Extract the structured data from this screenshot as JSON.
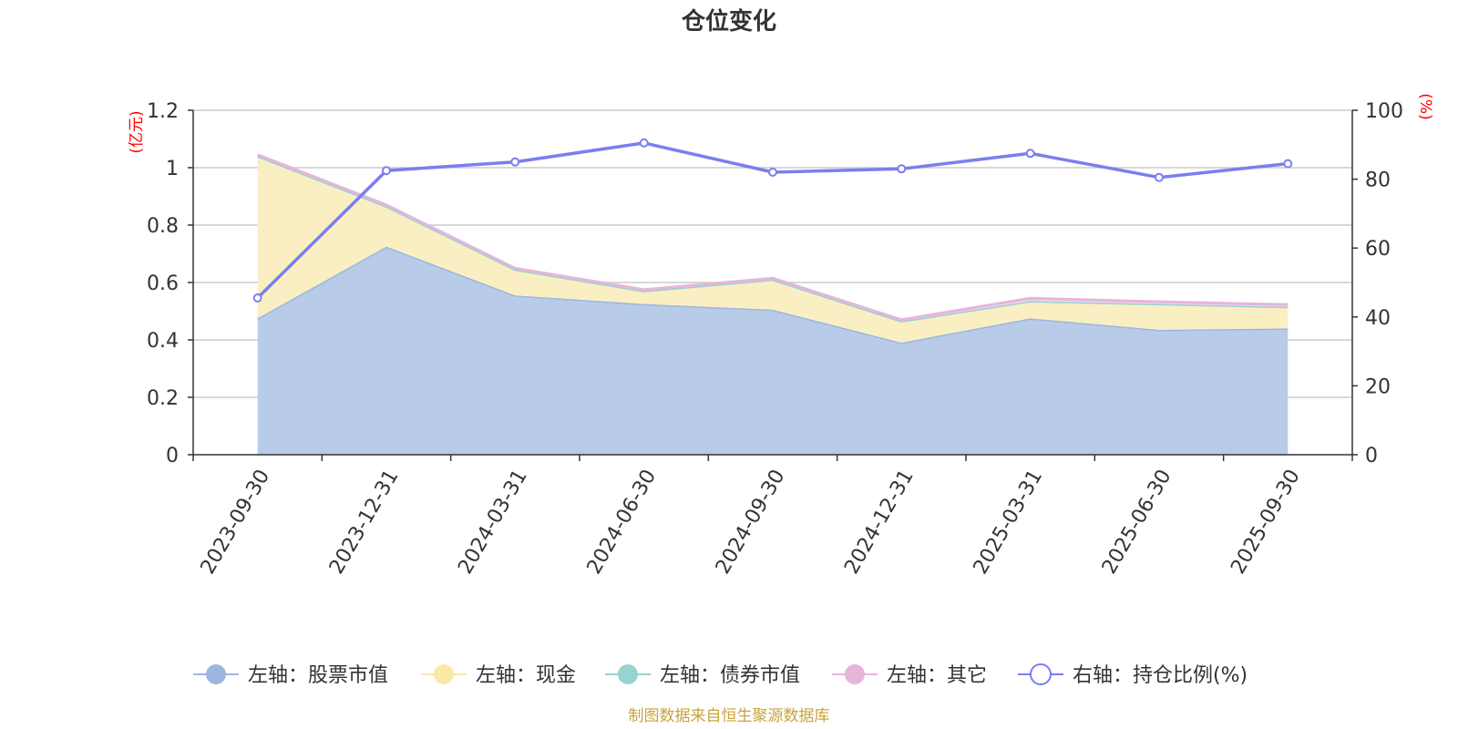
{
  "chart_data": {
    "type": "area",
    "title": "仓位变化",
    "left_unit": "(亿元)",
    "right_unit": "(%)",
    "categories": [
      "2023-09-30",
      "2023-12-31",
      "2024-03-31",
      "2024-06-30",
      "2024-09-30",
      "2024-12-31",
      "2025-03-31",
      "2025-06-30",
      "2025-09-30"
    ],
    "left_axis": {
      "ylim": [
        0,
        1.2
      ],
      "ticks": [
        "0",
        "0.2",
        "0.4",
        "0.6",
        "0.8",
        "1",
        "1.2"
      ]
    },
    "right_axis": {
      "ylim": [
        0,
        100
      ],
      "ticks": [
        "0",
        "20",
        "40",
        "60",
        "80",
        "100"
      ]
    },
    "series": [
      {
        "name": "左轴：股票市值",
        "axis": "left",
        "stack": true,
        "color": "#9bb7e0",
        "fill": "#b8cce9",
        "values": [
          0.475,
          0.725,
          0.555,
          0.525,
          0.505,
          0.39,
          0.475,
          0.435,
          0.44
        ]
      },
      {
        "name": "左轴：现金",
        "axis": "left",
        "stack": true,
        "color": "#f9e8a8",
        "fill": "#faefc3",
        "values": [
          0.565,
          0.14,
          0.09,
          0.045,
          0.105,
          0.075,
          0.06,
          0.09,
          0.075
        ]
      },
      {
        "name": "左轴：债券市值",
        "axis": "left",
        "stack": true,
        "color": "#96d3d3",
        "fill": "#b6e1e1",
        "values": [
          0,
          0,
          0,
          0,
          0,
          0,
          0,
          0,
          0
        ]
      },
      {
        "name": "左轴：其它",
        "axis": "left",
        "stack": true,
        "color": "#e8b4da",
        "fill": "#f2d3ea",
        "values": [
          0.005,
          0.005,
          0.005,
          0.005,
          0.005,
          0.005,
          0.01,
          0.008,
          0.008
        ]
      },
      {
        "name": "右轴：持仓比例(%)",
        "axis": "right",
        "stack": false,
        "color": "#7b7ef0",
        "values": [
          45.5,
          82.5,
          85,
          90.5,
          82,
          83,
          87.5,
          80.5,
          84.5
        ]
      }
    ],
    "legend_position": "bottom",
    "grid": true
  },
  "source_note": "制图数据来自恒生聚源数据库"
}
